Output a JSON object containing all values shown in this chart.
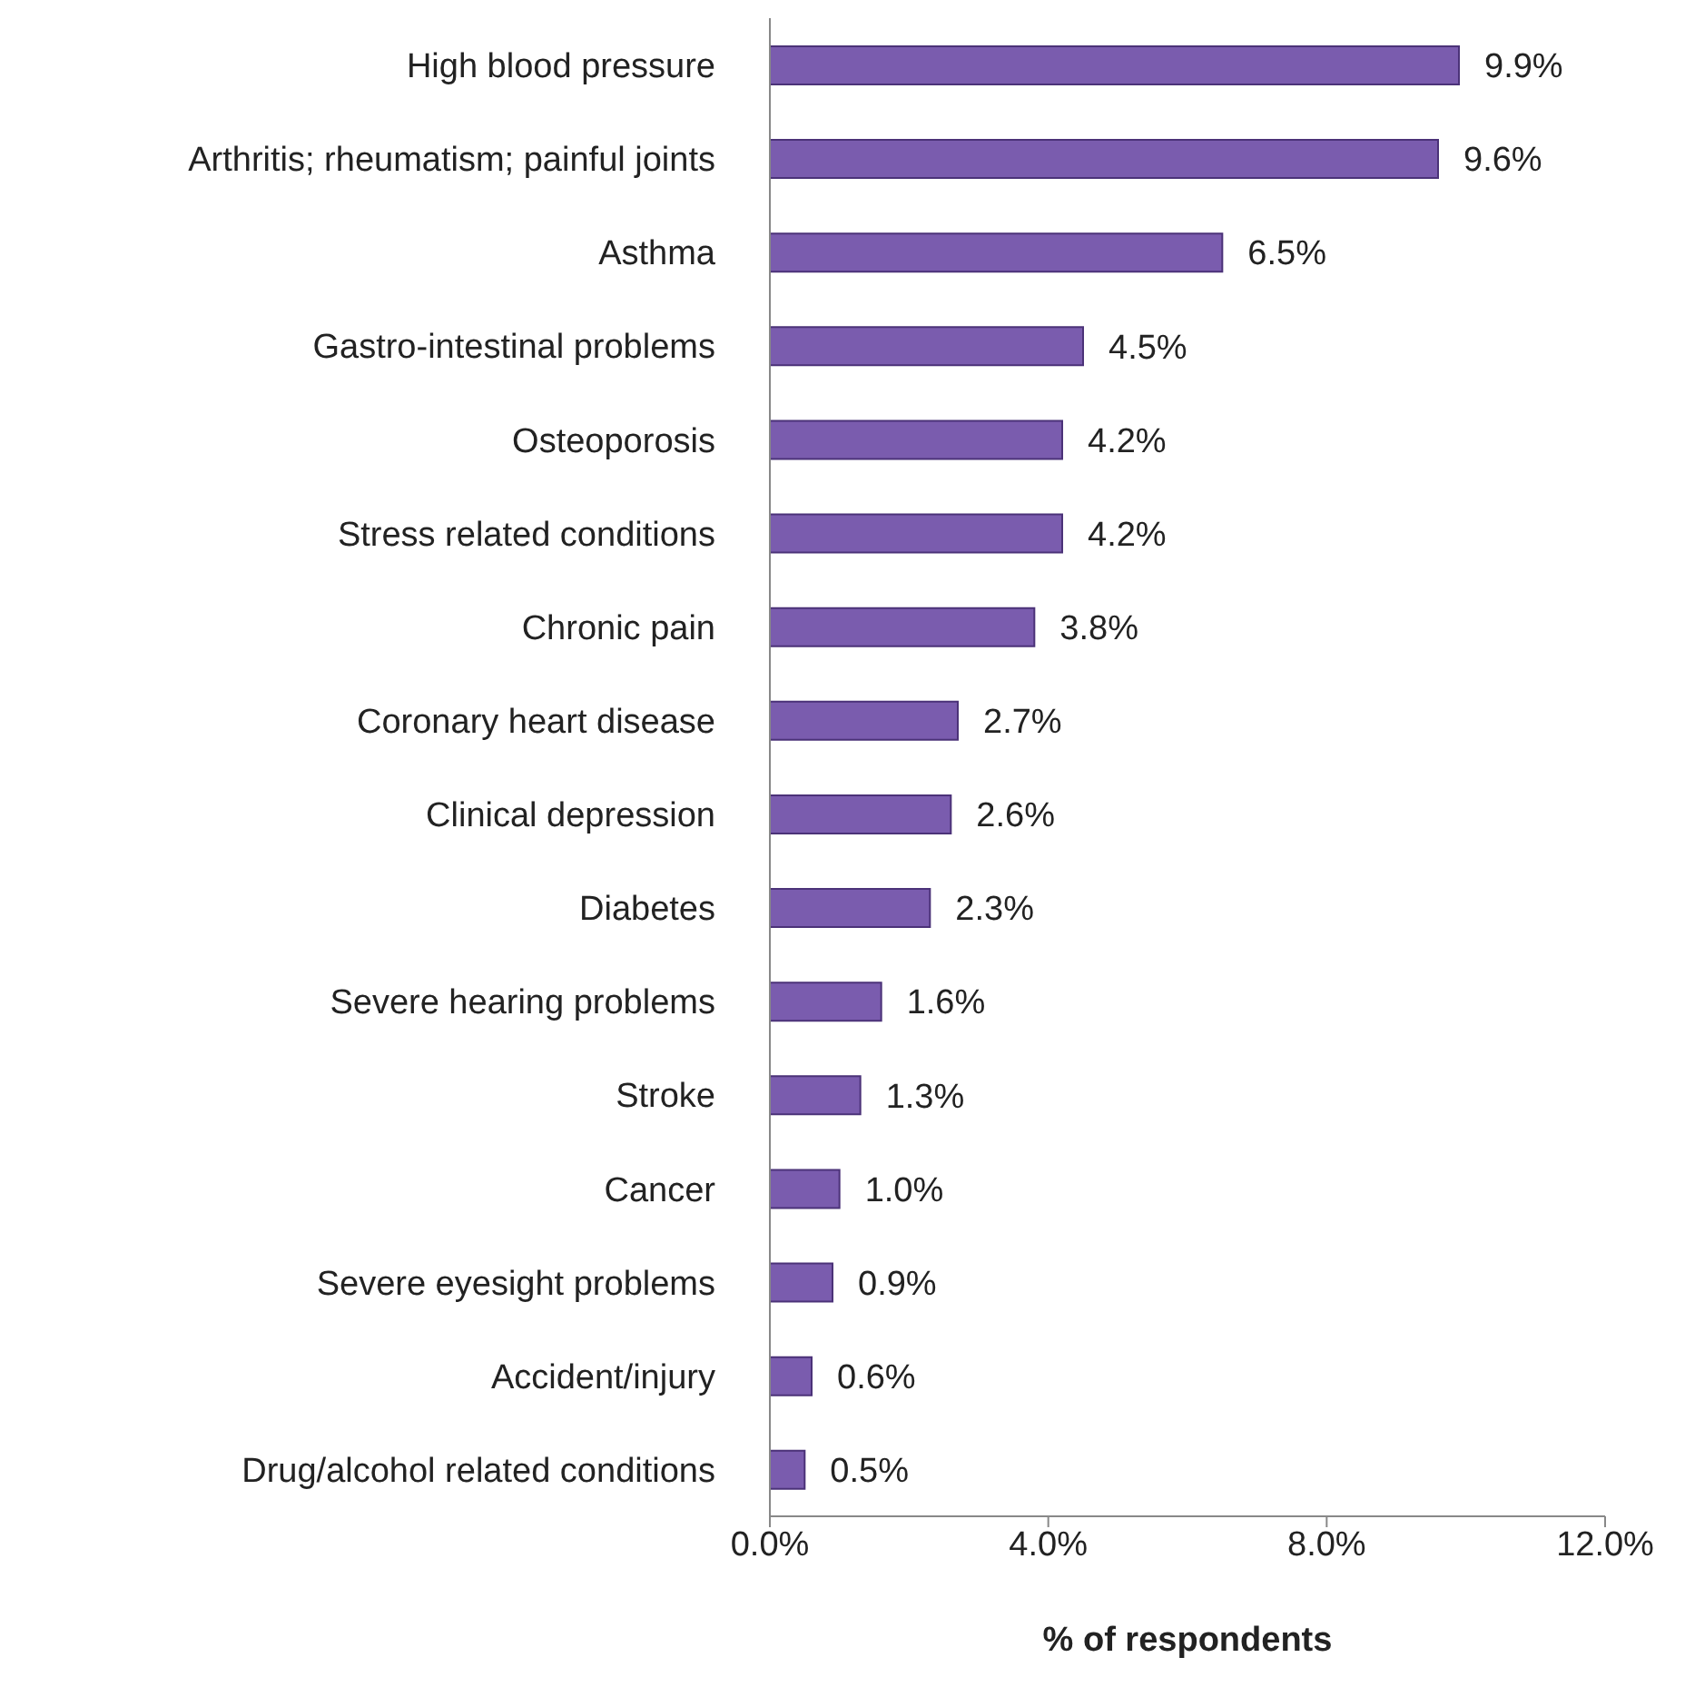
{
  "chart_data": {
    "type": "bar",
    "orientation": "horizontal",
    "xlabel": "% of respondents",
    "categories": [
      "High blood pressure",
      "Arthritis; rheumatism; painful joints",
      "Asthma",
      "Gastro-intestinal problems",
      "Osteoporosis",
      "Stress related conditions",
      "Chronic pain",
      "Coronary heart disease",
      "Clinical depression",
      "Diabetes",
      "Severe hearing problems",
      "Stroke",
      "Cancer",
      "Severe eyesight problems",
      "Accident/injury",
      "Drug/alcohol related conditions"
    ],
    "values": [
      9.9,
      9.6,
      6.5,
      4.5,
      4.2,
      4.2,
      3.8,
      2.7,
      2.6,
      2.3,
      1.6,
      1.3,
      1.0,
      0.9,
      0.6,
      0.5
    ],
    "value_labels": [
      "9.9%",
      "9.6%",
      "6.5%",
      "4.5%",
      "4.2%",
      "4.2%",
      "3.8%",
      "2.7%",
      "2.6%",
      "2.3%",
      "1.6%",
      "1.3%",
      "1.0%",
      "0.9%",
      "0.6%",
      "0.5%"
    ],
    "color": "#7a5cae",
    "xlim": [
      0,
      12
    ],
    "xticks": [
      {
        "value": 0,
        "label": "0.0%"
      },
      {
        "value": 4,
        "label": "4.0%"
      },
      {
        "value": 8,
        "label": "8.0%"
      },
      {
        "value": 12,
        "label": "12.0%"
      }
    ],
    "grid": false,
    "legend": false
  }
}
